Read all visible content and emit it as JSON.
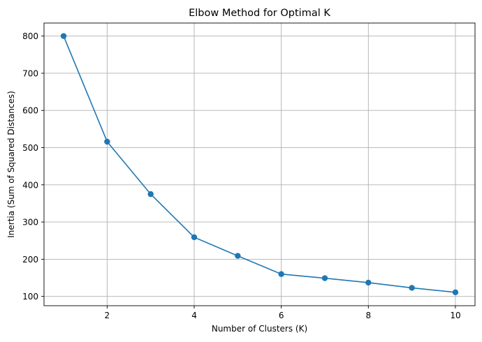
{
  "chart_data": {
    "type": "line",
    "title": "Elbow Method for Optimal K",
    "xlabel": "Number of Clusters (K)",
    "ylabel": "Inertia (Sum of Squared Distances)",
    "xlim": [
      0.55,
      10.45
    ],
    "ylim": [
      75,
      835
    ],
    "xticks": [
      2,
      4,
      6,
      8,
      10
    ],
    "yticks": [
      100,
      200,
      300,
      400,
      500,
      600,
      700,
      800
    ],
    "grid": true,
    "marker": "circle",
    "color": "#1f77b4",
    "series": [
      {
        "x": [
          1,
          2,
          3,
          4,
          5,
          6,
          7,
          8,
          9,
          10
        ],
        "values": [
          800,
          516,
          375,
          259,
          209,
          160,
          149,
          137,
          123,
          111
        ]
      }
    ]
  }
}
